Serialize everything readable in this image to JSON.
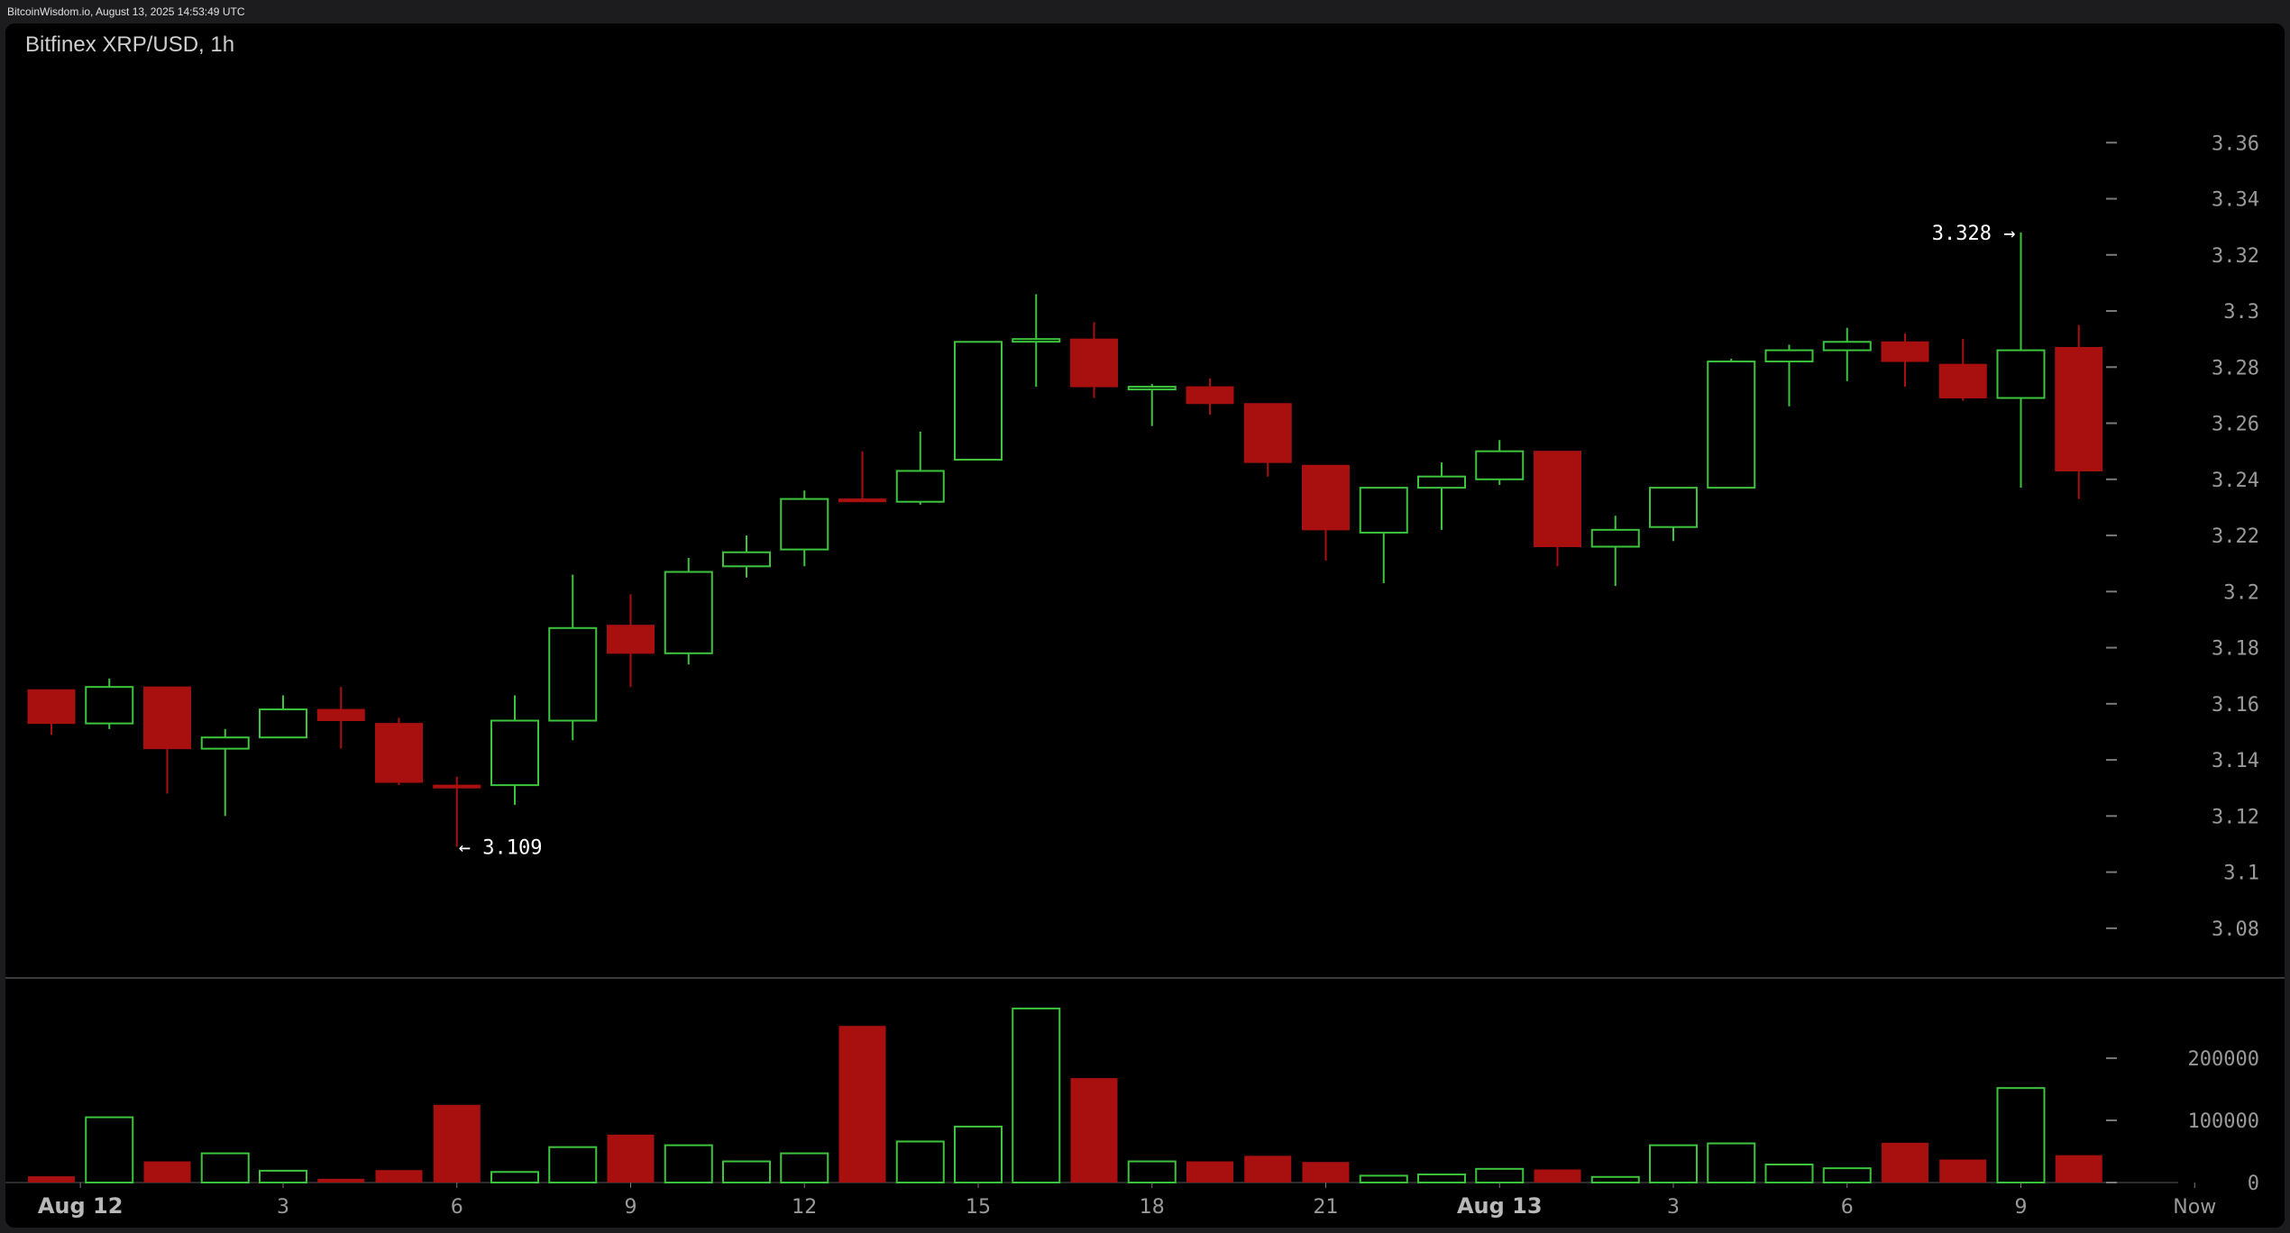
{
  "header": {
    "source": "BitcoinWisdom.io, August 13, 2025 14:53:49 UTC",
    "title": "Bitfinex XRP/USD, 1h"
  },
  "colors": {
    "up": "#3cc43c",
    "down": "#a81010",
    "axis": "#7a7a7a",
    "background": "#000000"
  },
  "chart_data": {
    "type": "candlestick",
    "title": "Bitfinex XRP/USD, 1h",
    "price_axis": {
      "ylim": [
        3.07,
        3.38
      ],
      "ticks": [
        3.08,
        3.1,
        3.12,
        3.14,
        3.16,
        3.18,
        3.2,
        3.22,
        3.24,
        3.26,
        3.28,
        3.3,
        3.32,
        3.34,
        3.36
      ],
      "tick_labels": [
        "3.08",
        "3.1",
        "3.12",
        "3.14",
        "3.16",
        "3.18",
        "3.2",
        "3.22",
        "3.24",
        "3.26",
        "3.28",
        "3.3",
        "3.32",
        "3.34",
        "3.36"
      ]
    },
    "volume_axis": {
      "ylim": [
        0,
        290000
      ],
      "ticks": [
        0,
        100000,
        200000
      ],
      "tick_labels": [
        "0",
        "100000",
        "200000"
      ]
    },
    "x_axis": {
      "labels": [
        {
          "index": 0.5,
          "text": "Aug 12",
          "bold": true
        },
        {
          "index": 4,
          "text": "3",
          "bold": false
        },
        {
          "index": 7,
          "text": "6",
          "bold": false
        },
        {
          "index": 10,
          "text": "9",
          "bold": false
        },
        {
          "index": 13,
          "text": "12",
          "bold": false
        },
        {
          "index": 16,
          "text": "15",
          "bold": false
        },
        {
          "index": 19,
          "text": "18",
          "bold": false
        },
        {
          "index": 22,
          "text": "21",
          "bold": false
        },
        {
          "index": 25,
          "text": "Aug 13",
          "bold": true
        },
        {
          "index": 28,
          "text": "3",
          "bold": false
        },
        {
          "index": 31,
          "text": "6",
          "bold": false
        },
        {
          "index": 34,
          "text": "9",
          "bold": false
        },
        {
          "index": 37,
          "text": "Now",
          "bold": false
        }
      ]
    },
    "candles": [
      {
        "o": 3.165,
        "h": 3.165,
        "l": 3.149,
        "c": 3.153,
        "v": 10000
      },
      {
        "o": 3.153,
        "h": 3.169,
        "l": 3.151,
        "c": 3.166,
        "v": 105000
      },
      {
        "o": 3.166,
        "h": 3.166,
        "l": 3.128,
        "c": 3.144,
        "v": 34000
      },
      {
        "o": 3.144,
        "h": 3.151,
        "l": 3.12,
        "c": 3.148,
        "v": 47000
      },
      {
        "o": 3.148,
        "h": 3.163,
        "l": 3.148,
        "c": 3.158,
        "v": 19000
      },
      {
        "o": 3.158,
        "h": 3.166,
        "l": 3.144,
        "c": 3.154,
        "v": 6000
      },
      {
        "o": 3.153,
        "h": 3.155,
        "l": 3.131,
        "c": 3.132,
        "v": 20000
      },
      {
        "o": 3.131,
        "h": 3.134,
        "l": 3.109,
        "c": 3.13,
        "v": 125000
      },
      {
        "o": 3.131,
        "h": 3.163,
        "l": 3.124,
        "c": 3.154,
        "v": 17000
      },
      {
        "o": 3.154,
        "h": 3.206,
        "l": 3.147,
        "c": 3.187,
        "v": 57000
      },
      {
        "o": 3.188,
        "h": 3.199,
        "l": 3.166,
        "c": 3.178,
        "v": 77000
      },
      {
        "o": 3.178,
        "h": 3.212,
        "l": 3.174,
        "c": 3.207,
        "v": 60000
      },
      {
        "o": 3.209,
        "h": 3.22,
        "l": 3.205,
        "c": 3.214,
        "v": 34000
      },
      {
        "o": 3.215,
        "h": 3.236,
        "l": 3.209,
        "c": 3.233,
        "v": 47000
      },
      {
        "o": 3.233,
        "h": 3.25,
        "l": 3.232,
        "c": 3.232,
        "v": 252000
      },
      {
        "o": 3.232,
        "h": 3.257,
        "l": 3.231,
        "c": 3.243,
        "v": 66000
      },
      {
        "o": 3.247,
        "h": 3.289,
        "l": 3.247,
        "c": 3.289,
        "v": 90000
      },
      {
        "o": 3.29,
        "h": 3.306,
        "l": 3.273,
        "c": 3.29,
        "v": 280000
      },
      {
        "o": 3.29,
        "h": 3.296,
        "l": 3.269,
        "c": 3.273,
        "v": 168000
      },
      {
        "o": 3.273,
        "h": 3.274,
        "l": 3.259,
        "c": 3.273,
        "v": 34000
      },
      {
        "o": 3.273,
        "h": 3.276,
        "l": 3.263,
        "c": 3.267,
        "v": 34000
      },
      {
        "o": 3.267,
        "h": 3.267,
        "l": 3.241,
        "c": 3.246,
        "v": 43000
      },
      {
        "o": 3.245,
        "h": 3.245,
        "l": 3.211,
        "c": 3.222,
        "v": 33000
      },
      {
        "o": 3.221,
        "h": 3.237,
        "l": 3.203,
        "c": 3.237,
        "v": 11000
      },
      {
        "o": 3.237,
        "h": 3.246,
        "l": 3.222,
        "c": 3.241,
        "v": 13000
      },
      {
        "o": 3.24,
        "h": 3.254,
        "l": 3.238,
        "c": 3.25,
        "v": 22000
      },
      {
        "o": 3.25,
        "h": 3.25,
        "l": 3.209,
        "c": 3.216,
        "v": 21000
      },
      {
        "o": 3.216,
        "h": 3.227,
        "l": 3.202,
        "c": 3.222,
        "v": 9000
      },
      {
        "o": 3.223,
        "h": 3.237,
        "l": 3.218,
        "c": 3.237,
        "v": 60000
      },
      {
        "o": 3.237,
        "h": 3.283,
        "l": 3.237,
        "c": 3.282,
        "v": 63000
      },
      {
        "o": 3.282,
        "h": 3.288,
        "l": 3.266,
        "c": 3.286,
        "v": 29000
      },
      {
        "o": 3.286,
        "h": 3.294,
        "l": 3.275,
        "c": 3.289,
        "v": 23000
      },
      {
        "o": 3.289,
        "h": 3.292,
        "l": 3.273,
        "c": 3.282,
        "v": 64000
      },
      {
        "o": 3.281,
        "h": 3.29,
        "l": 3.268,
        "c": 3.269,
        "v": 37000
      },
      {
        "o": 3.269,
        "h": 3.328,
        "l": 3.237,
        "c": 3.286,
        "v": 152000
      },
      {
        "o": 3.287,
        "h": 3.295,
        "l": 3.233,
        "c": 3.243,
        "v": 44000
      }
    ],
    "annotations": [
      {
        "text": "← 3.109",
        "index": 7,
        "value": 3.109,
        "side": "right"
      },
      {
        "text": "3.328 →",
        "index": 34,
        "value": 3.328,
        "side": "left"
      }
    ]
  }
}
